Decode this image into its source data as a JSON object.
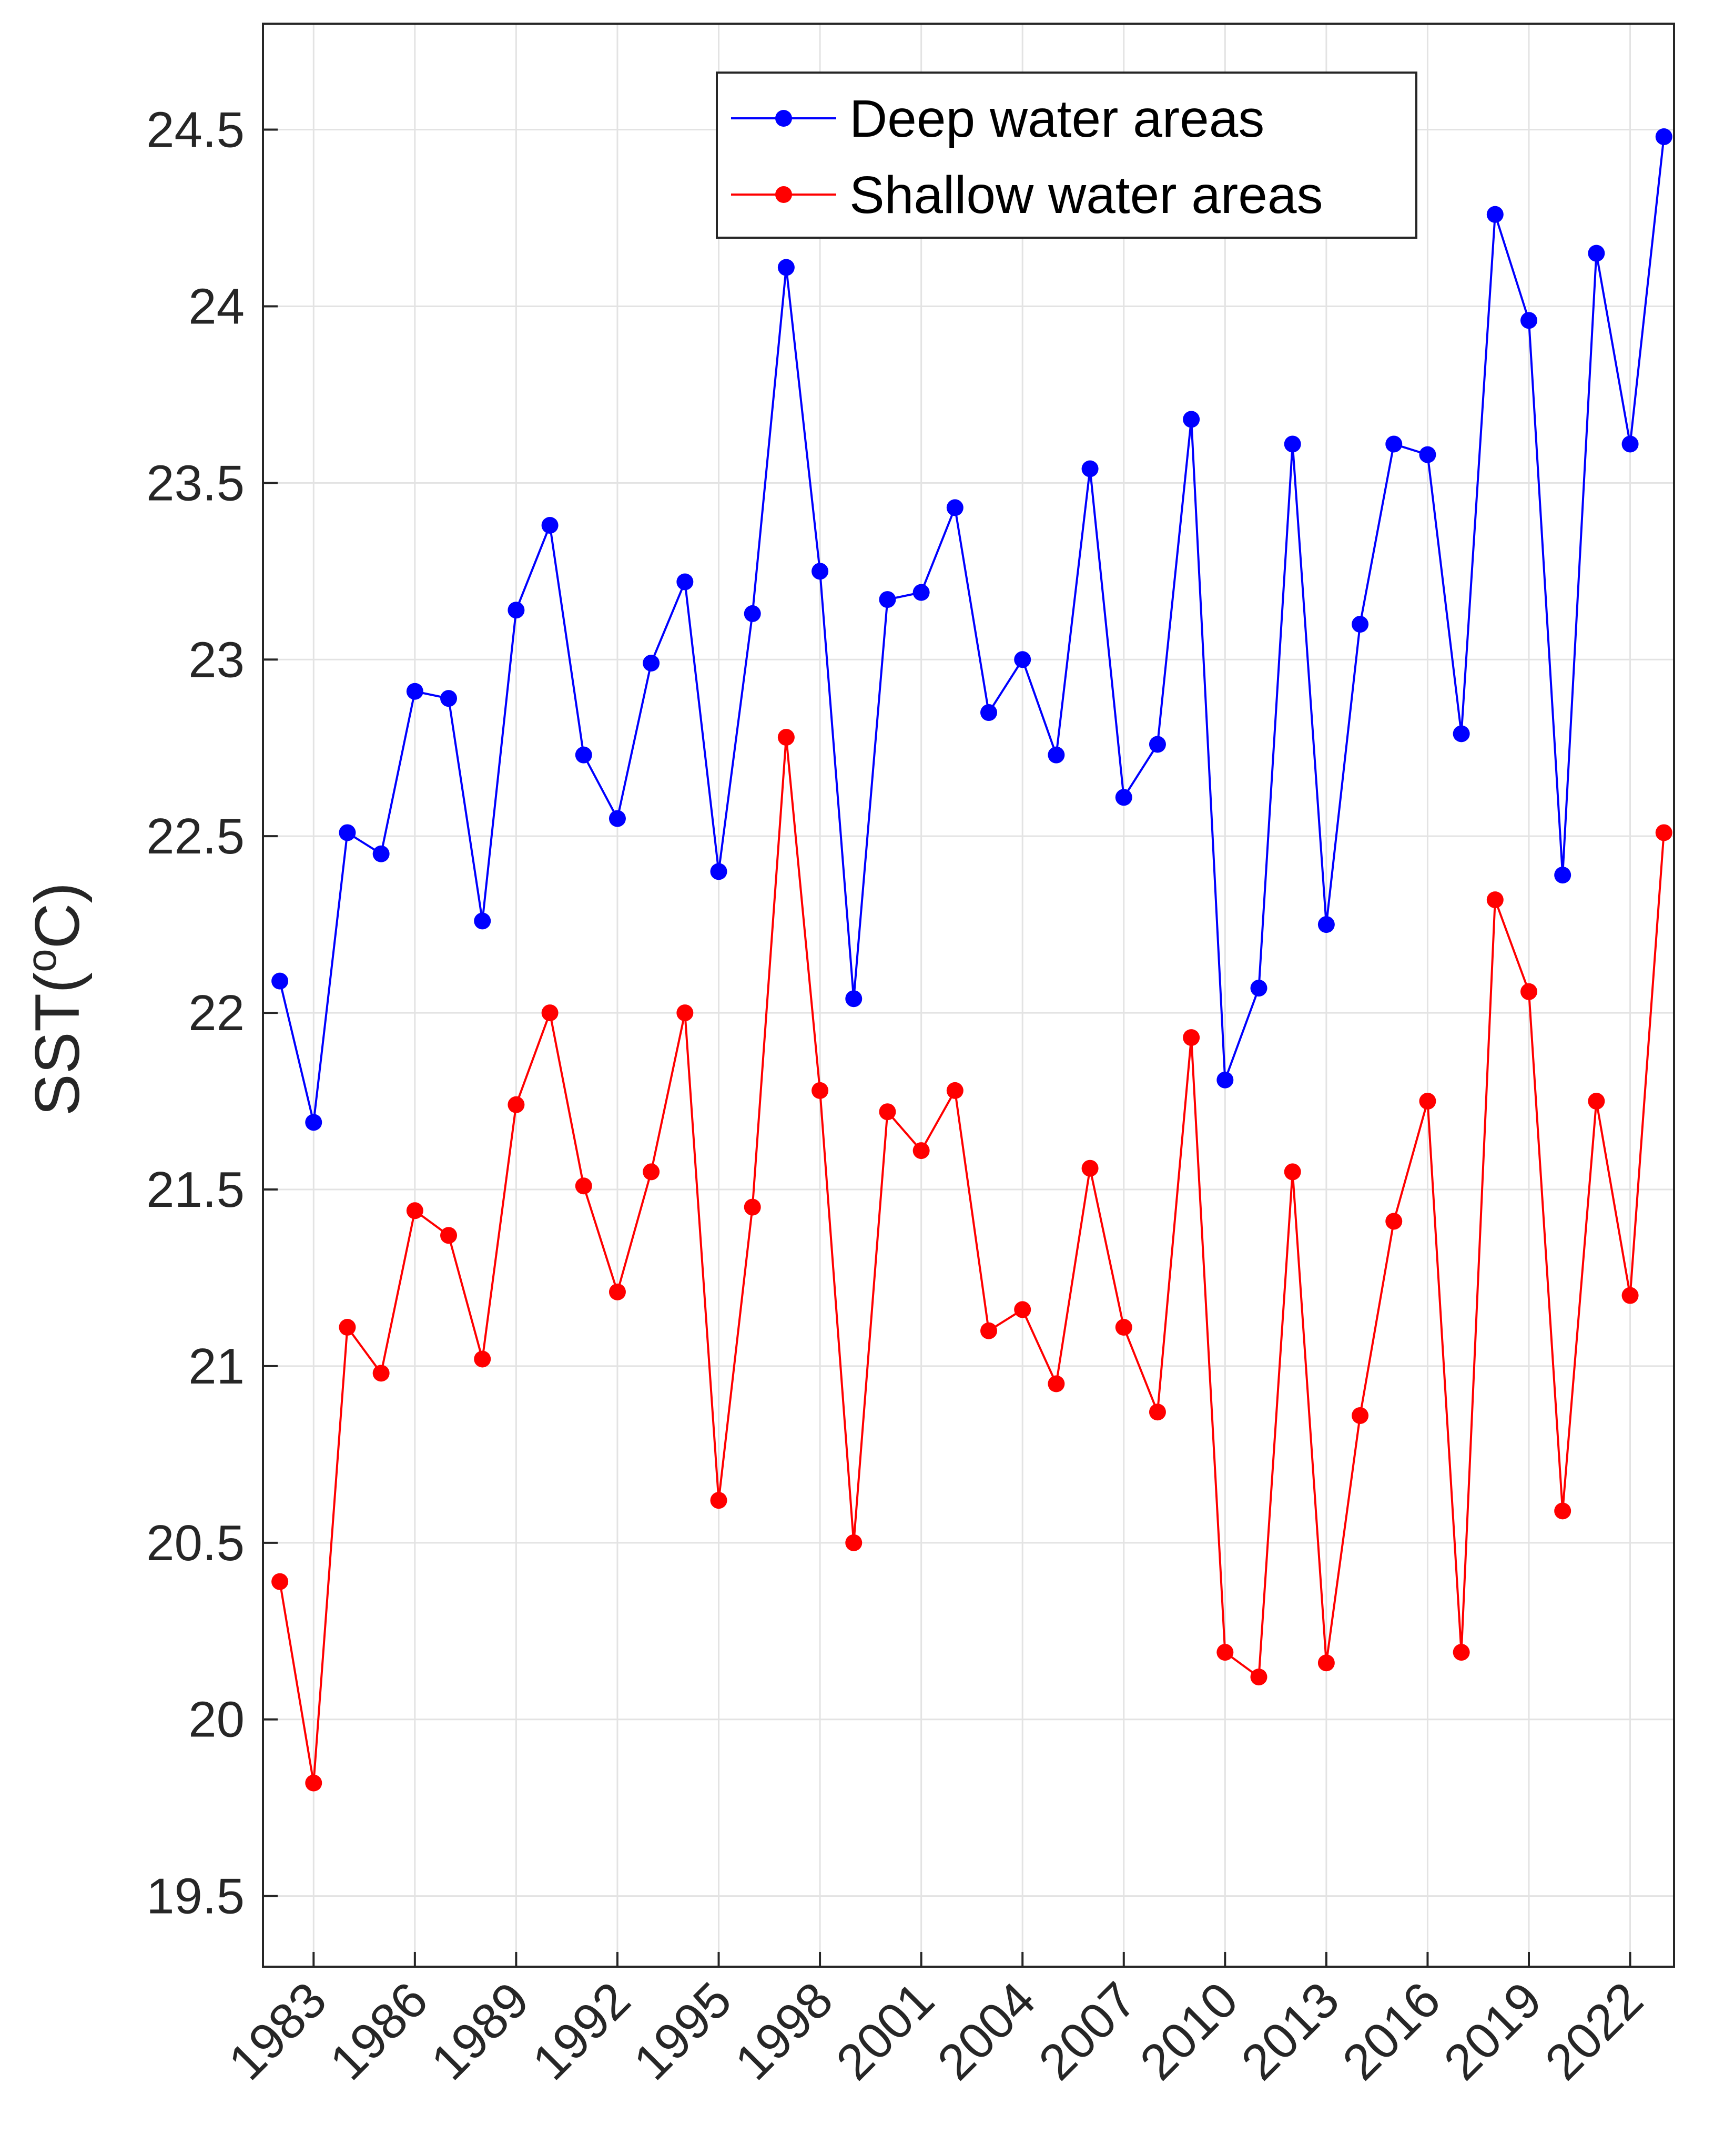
{
  "chart_data": {
    "type": "line",
    "ylabel": "SST(",
    "ylabel_sup": "o",
    "ylabel_end": "C)",
    "ylim": [
      19.3,
      24.8
    ],
    "xlim": [
      1981.5,
      2023.3
    ],
    "yticks": [
      "19.5",
      "20",
      "20.5",
      "21",
      "21.5",
      "22",
      "22.5",
      "23",
      "23.5",
      "24",
      "24.5"
    ],
    "ytick_values": [
      19.5,
      20,
      20.5,
      21,
      21.5,
      22,
      22.5,
      23,
      23.5,
      24,
      24.5
    ],
    "xticks": [
      "1983",
      "1986",
      "1989",
      "1992",
      "1995",
      "1998",
      "2001",
      "2004",
      "2007",
      "2010",
      "2013",
      "2016",
      "2019",
      "2022"
    ],
    "xtick_values": [
      1983,
      1986,
      1989,
      1992,
      1995,
      1998,
      2001,
      2004,
      2007,
      2010,
      2013,
      2016,
      2019,
      2022
    ],
    "grid": true,
    "legend_position": "top-right",
    "x": [
      1982,
      1983,
      1984,
      1985,
      1986,
      1987,
      1988,
      1989,
      1990,
      1991,
      1992,
      1993,
      1994,
      1995,
      1996,
      1997,
      1998,
      1999,
      2000,
      2001,
      2002,
      2003,
      2004,
      2005,
      2006,
      2007,
      2008,
      2009,
      2010,
      2011,
      2012,
      2013,
      2014,
      2015,
      2016,
      2017,
      2018,
      2019,
      2020,
      2021,
      2022,
      2023
    ],
    "series": [
      {
        "name": "Deep water areas",
        "color": "#0000ff",
        "values": [
          22.09,
          21.69,
          22.51,
          22.45,
          22.91,
          22.89,
          22.26,
          23.14,
          23.38,
          22.73,
          22.55,
          22.99,
          23.22,
          22.4,
          23.13,
          24.11,
          23.25,
          22.04,
          23.17,
          23.19,
          23.43,
          22.85,
          23.0,
          22.73,
          23.54,
          22.61,
          22.76,
          23.68,
          21.81,
          22.07,
          23.61,
          22.25,
          23.1,
          23.61,
          23.58,
          22.79,
          24.26,
          23.96,
          22.39,
          24.15,
          23.61,
          24.48
        ]
      },
      {
        "name": "Shallow water areas",
        "color": "#ff0000",
        "values": [
          20.39,
          19.82,
          21.11,
          20.98,
          21.44,
          21.37,
          21.02,
          21.74,
          22.0,
          21.51,
          21.21,
          21.55,
          22.0,
          20.62,
          21.45,
          22.78,
          21.78,
          20.5,
          21.72,
          21.61,
          21.78,
          21.1,
          21.16,
          20.95,
          21.56,
          21.11,
          20.87,
          21.93,
          20.19,
          20.12,
          21.55,
          20.16,
          20.86,
          21.41,
          21.75,
          20.19,
          22.32,
          22.06,
          20.59,
          21.75,
          21.2,
          22.51
        ]
      }
    ]
  }
}
